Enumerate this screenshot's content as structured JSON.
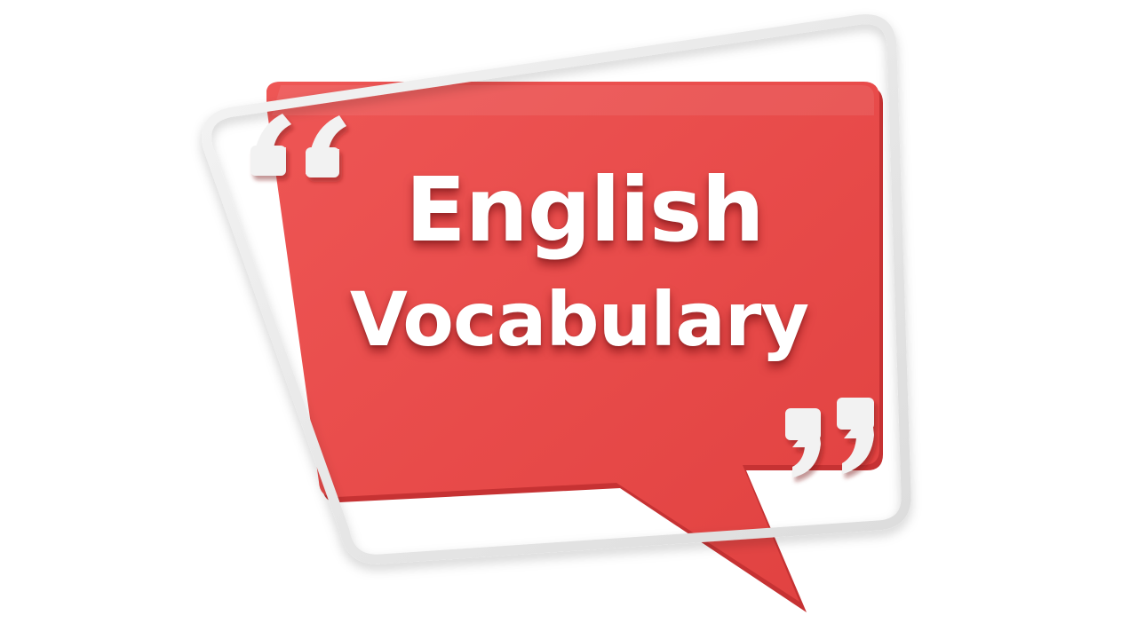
{
  "title": {
    "line1": "English",
    "line2": "Vocabulary"
  },
  "colors": {
    "bubble": "#e84747",
    "bubble_light": "#f05e5c",
    "bubble_dark": "#c93435",
    "frame": "#ebebeb",
    "quote_marks": "#f2f2f2",
    "text": "#ffffff",
    "background": "#ffffff"
  },
  "icons": {
    "open_quote": "open-quote-icon",
    "close_quote": "close-quote-icon"
  }
}
